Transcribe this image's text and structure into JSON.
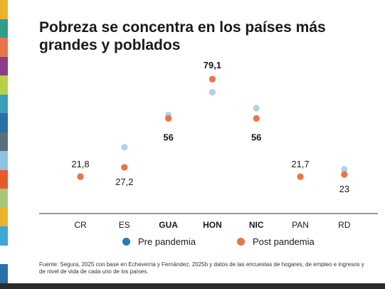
{
  "title": "Pobreza se concentra en los países más grandes y poblados",
  "chart_data": {
    "type": "scatter",
    "categories": [
      "CR",
      "ES",
      "GUA",
      "HON",
      "NIC",
      "PAN",
      "RD"
    ],
    "bold_categories": [
      "GUA",
      "HON",
      "NIC"
    ],
    "series": [
      {
        "name": "Pre pandemia",
        "color": "#b3d1e3",
        "legend_color": "#1f7fb8",
        "values": [
          21.5,
          39.0,
          58.0,
          71.4,
          62.0,
          21.7,
          26.0
        ]
      },
      {
        "name": "Post pandemia",
        "color": "#e8744a",
        "legend_color": "#e8744a",
        "values": [
          21.8,
          27.2,
          56.0,
          79.1,
          56.0,
          21.7,
          23.0
        ]
      }
    ],
    "data_labels": [
      "21,8",
      "27,2",
      "56",
      "79,1",
      "56",
      "21,7",
      "23"
    ],
    "ylim": [
      0,
      100
    ],
    "xlabel": "",
    "ylabel": "",
    "grid": false
  },
  "legend": {
    "pre": "Pre pandemia",
    "post": "Post pandemia",
    "pre_color": "#1f7fb8",
    "post_color": "#e8744a"
  },
  "source": "Fuente: Segura, 2025 con base en Echeverria y Fernández, 2025b y datos de las encuestas de hogares, de empleo e ingresos y de nivel de vida de cada uno de los países.",
  "stripe_colors": [
    "#e9b32d",
    "#2f9e88",
    "#e8744a",
    "#8e3b8a",
    "#b8cf4a",
    "#3a9fb5",
    "#2a6fa8",
    "#5a6f7a",
    "#8fc2e0",
    "#e65a2a",
    "#a8c87a",
    "#e9b32d",
    "#3aa8d8",
    "#ffffff",
    "#2a6fa8"
  ]
}
